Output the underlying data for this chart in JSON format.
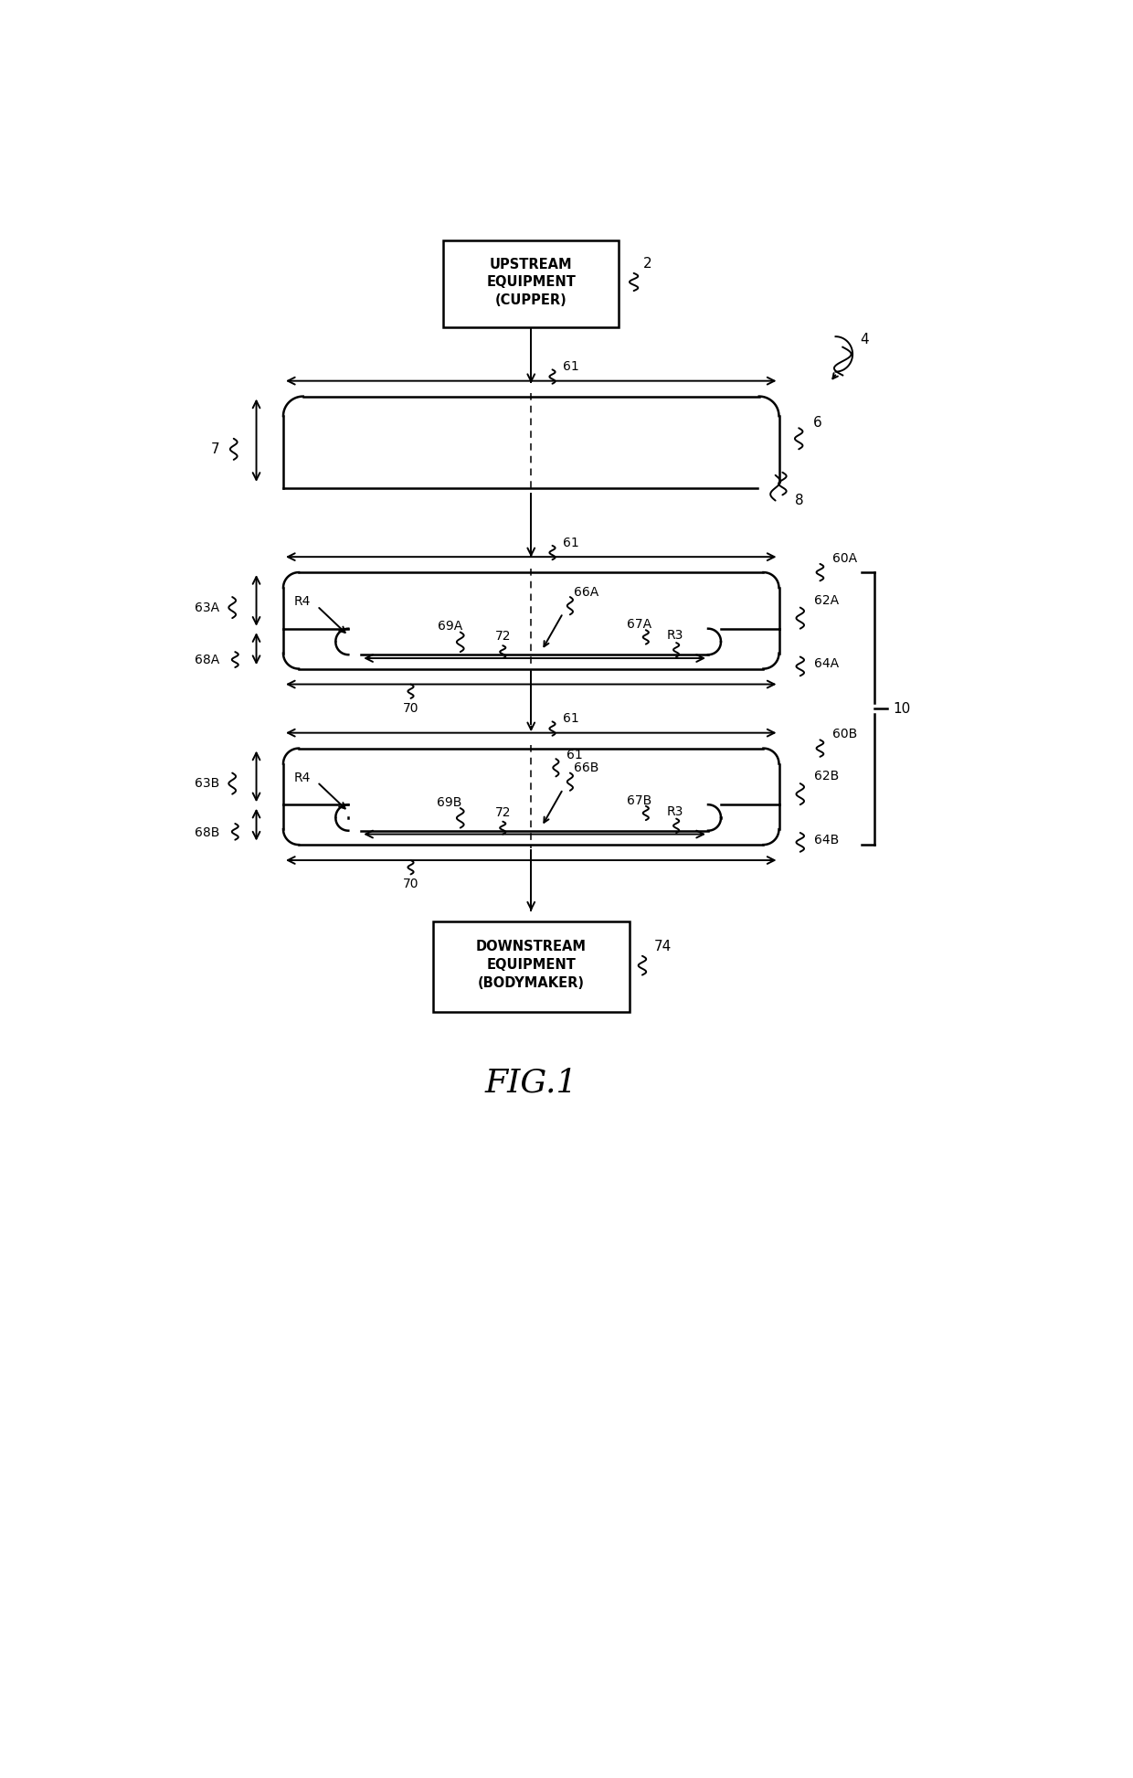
{
  "bg_color": "#ffffff",
  "line_color": "#000000",
  "fig_width": 12.4,
  "fig_height": 19.45,
  "title": "FIG.1",
  "upstream_label": "2",
  "upstream_text": "UPSTREAM\nEQUIPMENT\n(CUPPER)",
  "downstream_label": "74",
  "downstream_text": "DOWNSTREAM\nEQUIPMENT\n(BODYMAKER)",
  "label_4": "4",
  "label_6": "6",
  "label_7": "7",
  "label_8": "8",
  "label_10": "10",
  "label_61": "61",
  "label_60A": "60A",
  "label_60B": "60B",
  "label_62A": "62A",
  "label_62B": "62B",
  "label_63A": "63A",
  "label_63B": "63B",
  "label_64A": "64A",
  "label_64B": "64B",
  "label_66A": "66A",
  "label_66B": "66B",
  "label_67A": "67A",
  "label_67B": "67B",
  "label_68A": "68A",
  "label_68B": "68B",
  "label_69A": "69A",
  "label_69B": "69B",
  "label_70": "70",
  "label_72": "72",
  "label_R3": "R3",
  "label_R4": "R4"
}
